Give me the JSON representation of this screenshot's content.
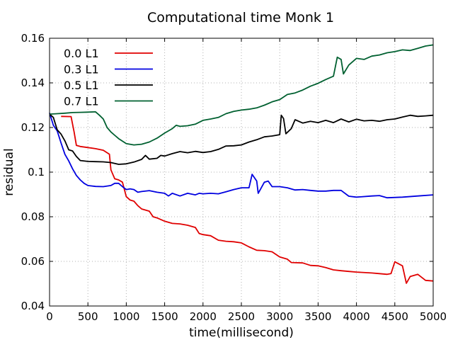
{
  "chart_data": {
    "type": "line",
    "title": "Computational time Monk 1",
    "xlabel": "time(millisecond)",
    "ylabel": "residual",
    "xlim": [
      0,
      5000
    ],
    "ylim": [
      0.04,
      0.16
    ],
    "x_ticks": [
      0,
      500,
      1000,
      1500,
      2000,
      2500,
      3000,
      3500,
      4000,
      4500,
      5000
    ],
    "x_tick_labels": [
      "0",
      "500",
      "1000",
      "1500",
      "2000",
      "2500",
      "3000",
      "3500",
      "4000",
      "4500",
      "5000"
    ],
    "y_ticks": [
      0.04,
      0.06,
      0.08,
      0.1,
      0.12,
      0.14,
      0.16
    ],
    "y_tick_labels": [
      "0.04",
      "0.06",
      "0.08",
      "0.1",
      "0.12",
      "0.14",
      "0.16"
    ],
    "grid": true,
    "legend_position": "top-left",
    "series": [
      {
        "name": "0.0 L1",
        "color": "#e00000",
        "points": [
          [
            150,
            0.125
          ],
          [
            280,
            0.1249
          ],
          [
            320,
            0.118
          ],
          [
            350,
            0.112
          ],
          [
            400,
            0.1115
          ],
          [
            500,
            0.111
          ],
          [
            600,
            0.1105
          ],
          [
            700,
            0.1098
          ],
          [
            780,
            0.108
          ],
          [
            800,
            0.101
          ],
          [
            850,
            0.097
          ],
          [
            900,
            0.0965
          ],
          [
            950,
            0.0955
          ],
          [
            1000,
            0.089
          ],
          [
            1050,
            0.0875
          ],
          [
            1100,
            0.087
          ],
          [
            1150,
            0.085
          ],
          [
            1200,
            0.0835
          ],
          [
            1300,
            0.0825
          ],
          [
            1350,
            0.08
          ],
          [
            1400,
            0.0795
          ],
          [
            1500,
            0.078
          ],
          [
            1600,
            0.077
          ],
          [
            1700,
            0.0768
          ],
          [
            1800,
            0.0762
          ],
          [
            1900,
            0.0752
          ],
          [
            1950,
            0.0725
          ],
          [
            2000,
            0.072
          ],
          [
            2100,
            0.0715
          ],
          [
            2200,
            0.0695
          ],
          [
            2300,
            0.069
          ],
          [
            2400,
            0.0688
          ],
          [
            2500,
            0.0683
          ],
          [
            2600,
            0.0665
          ],
          [
            2700,
            0.065
          ],
          [
            2800,
            0.0648
          ],
          [
            2900,
            0.0643
          ],
          [
            3000,
            0.062
          ],
          [
            3100,
            0.061
          ],
          [
            3150,
            0.0595
          ],
          [
            3300,
            0.0593
          ],
          [
            3400,
            0.0582
          ],
          [
            3500,
            0.058
          ],
          [
            3600,
            0.0572
          ],
          [
            3700,
            0.0562
          ],
          [
            3800,
            0.0558
          ],
          [
            3900,
            0.0555
          ],
          [
            4000,
            0.0552
          ],
          [
            4200,
            0.0548
          ],
          [
            4300,
            0.0545
          ],
          [
            4400,
            0.0542
          ],
          [
            4450,
            0.0545
          ],
          [
            4500,
            0.0598
          ],
          [
            4600,
            0.058
          ],
          [
            4650,
            0.0502
          ],
          [
            4700,
            0.0532
          ],
          [
            4800,
            0.0542
          ],
          [
            4900,
            0.0515
          ],
          [
            5000,
            0.0512
          ]
        ]
      },
      {
        "name": "0.3 L1",
        "color": "#0000e0",
        "points": [
          [
            0,
            0.1265
          ],
          [
            50,
            0.121
          ],
          [
            100,
            0.1185
          ],
          [
            150,
            0.113
          ],
          [
            200,
            0.108
          ],
          [
            250,
            0.105
          ],
          [
            300,
            0.1015
          ],
          [
            350,
            0.0985
          ],
          [
            400,
            0.0965
          ],
          [
            450,
            0.095
          ],
          [
            500,
            0.094
          ],
          [
            600,
            0.0936
          ],
          [
            700,
            0.0935
          ],
          [
            800,
            0.094
          ],
          [
            850,
            0.095
          ],
          [
            900,
            0.095
          ],
          [
            950,
            0.0935
          ],
          [
            1000,
            0.0922
          ],
          [
            1050,
            0.0925
          ],
          [
            1100,
            0.0922
          ],
          [
            1150,
            0.091
          ],
          [
            1200,
            0.0913
          ],
          [
            1300,
            0.0917
          ],
          [
            1400,
            0.091
          ],
          [
            1500,
            0.0905
          ],
          [
            1550,
            0.0893
          ],
          [
            1600,
            0.0905
          ],
          [
            1700,
            0.0893
          ],
          [
            1800,
            0.0905
          ],
          [
            1900,
            0.0898
          ],
          [
            1950,
            0.0905
          ],
          [
            2000,
            0.0903
          ],
          [
            2100,
            0.0905
          ],
          [
            2200,
            0.0903
          ],
          [
            2300,
            0.0912
          ],
          [
            2400,
            0.0922
          ],
          [
            2500,
            0.093
          ],
          [
            2600,
            0.093
          ],
          [
            2640,
            0.099
          ],
          [
            2700,
            0.096
          ],
          [
            2720,
            0.0905
          ],
          [
            2800,
            0.0955
          ],
          [
            2850,
            0.096
          ],
          [
            2900,
            0.0935
          ],
          [
            3000,
            0.0935
          ],
          [
            3100,
            0.093
          ],
          [
            3200,
            0.092
          ],
          [
            3300,
            0.0922
          ],
          [
            3400,
            0.0918
          ],
          [
            3500,
            0.0915
          ],
          [
            3600,
            0.0915
          ],
          [
            3700,
            0.0918
          ],
          [
            3800,
            0.0918
          ],
          [
            3900,
            0.0892
          ],
          [
            4000,
            0.0888
          ],
          [
            4200,
            0.0893
          ],
          [
            4300,
            0.0895
          ],
          [
            4400,
            0.0885
          ],
          [
            4600,
            0.0888
          ],
          [
            4800,
            0.0893
          ],
          [
            5000,
            0.0898
          ]
        ]
      },
      {
        "name": "0.5 L1",
        "color": "#000000",
        "points": [
          [
            0,
            0.126
          ],
          [
            50,
            0.1245
          ],
          [
            100,
            0.119
          ],
          [
            150,
            0.117
          ],
          [
            200,
            0.114
          ],
          [
            250,
            0.11
          ],
          [
            300,
            0.1095
          ],
          [
            350,
            0.107
          ],
          [
            400,
            0.1052
          ],
          [
            500,
            0.1048
          ],
          [
            600,
            0.1047
          ],
          [
            700,
            0.1046
          ],
          [
            800,
            0.1043
          ],
          [
            900,
            0.1035
          ],
          [
            1000,
            0.1037
          ],
          [
            1100,
            0.1045
          ],
          [
            1200,
            0.1057
          ],
          [
            1250,
            0.1075
          ],
          [
            1300,
            0.1058
          ],
          [
            1400,
            0.1062
          ],
          [
            1450,
            0.1075
          ],
          [
            1500,
            0.1072
          ],
          [
            1600,
            0.1083
          ],
          [
            1700,
            0.1092
          ],
          [
            1800,
            0.1087
          ],
          [
            1900,
            0.1093
          ],
          [
            2000,
            0.1088
          ],
          [
            2100,
            0.1092
          ],
          [
            2200,
            0.1102
          ],
          [
            2300,
            0.1117
          ],
          [
            2400,
            0.1118
          ],
          [
            2500,
            0.1122
          ],
          [
            2600,
            0.1135
          ],
          [
            2700,
            0.1145
          ],
          [
            2800,
            0.1158
          ],
          [
            2900,
            0.1162
          ],
          [
            3000,
            0.1168
          ],
          [
            3020,
            0.1255
          ],
          [
            3050,
            0.124
          ],
          [
            3080,
            0.1172
          ],
          [
            3150,
            0.1195
          ],
          [
            3200,
            0.1235
          ],
          [
            3300,
            0.122
          ],
          [
            3400,
            0.1228
          ],
          [
            3500,
            0.1222
          ],
          [
            3600,
            0.1232
          ],
          [
            3700,
            0.1222
          ],
          [
            3800,
            0.1238
          ],
          [
            3900,
            0.1225
          ],
          [
            4000,
            0.1237
          ],
          [
            4100,
            0.123
          ],
          [
            4200,
            0.1232
          ],
          [
            4300,
            0.1228
          ],
          [
            4400,
            0.1235
          ],
          [
            4500,
            0.1238
          ],
          [
            4600,
            0.1247
          ],
          [
            4700,
            0.1255
          ],
          [
            4800,
            0.125
          ],
          [
            4900,
            0.1252
          ],
          [
            5000,
            0.1255
          ]
        ]
      },
      {
        "name": "0.7 L1",
        "color": "#006030",
        "points": [
          [
            0,
            0.126
          ],
          [
            100,
            0.1262
          ],
          [
            200,
            0.1264
          ],
          [
            300,
            0.1267
          ],
          [
            400,
            0.1268
          ],
          [
            500,
            0.1269
          ],
          [
            600,
            0.127
          ],
          [
            650,
            0.1255
          ],
          [
            700,
            0.1238
          ],
          [
            750,
            0.12
          ],
          [
            800,
            0.118
          ],
          [
            850,
            0.1165
          ],
          [
            900,
            0.115
          ],
          [
            1000,
            0.1128
          ],
          [
            1100,
            0.1122
          ],
          [
            1200,
            0.1125
          ],
          [
            1300,
            0.1135
          ],
          [
            1400,
            0.1152
          ],
          [
            1500,
            0.1175
          ],
          [
            1600,
            0.1195
          ],
          [
            1650,
            0.121
          ],
          [
            1700,
            0.1205
          ],
          [
            1800,
            0.1208
          ],
          [
            1900,
            0.1215
          ],
          [
            2000,
            0.1232
          ],
          [
            2100,
            0.1238
          ],
          [
            2200,
            0.1245
          ],
          [
            2300,
            0.1262
          ],
          [
            2400,
            0.1272
          ],
          [
            2500,
            0.1278
          ],
          [
            2600,
            0.1282
          ],
          [
            2700,
            0.1288
          ],
          [
            2800,
            0.13
          ],
          [
            2900,
            0.1315
          ],
          [
            3000,
            0.1325
          ],
          [
            3100,
            0.1348
          ],
          [
            3200,
            0.1355
          ],
          [
            3300,
            0.1368
          ],
          [
            3400,
            0.1385
          ],
          [
            3500,
            0.1398
          ],
          [
            3600,
            0.1415
          ],
          [
            3700,
            0.143
          ],
          [
            3750,
            0.1515
          ],
          [
            3800,
            0.1505
          ],
          [
            3830,
            0.144
          ],
          [
            3900,
            0.148
          ],
          [
            4000,
            0.151
          ],
          [
            4100,
            0.1505
          ],
          [
            4200,
            0.152
          ],
          [
            4300,
            0.1525
          ],
          [
            4400,
            0.1535
          ],
          [
            4500,
            0.154
          ],
          [
            4600,
            0.1548
          ],
          [
            4700,
            0.1545
          ],
          [
            4800,
            0.1555
          ],
          [
            4900,
            0.1565
          ],
          [
            5000,
            0.157
          ]
        ]
      }
    ]
  }
}
